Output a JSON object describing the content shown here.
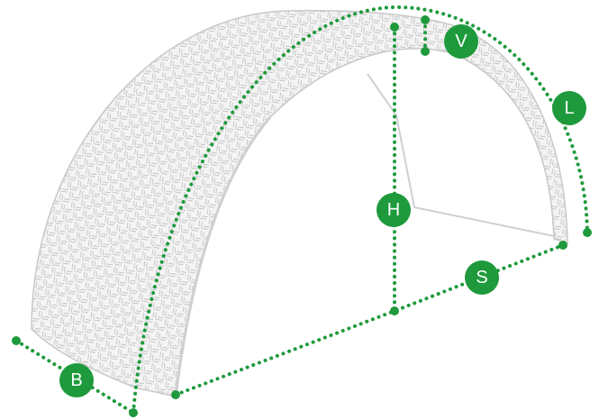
{
  "labels": {
    "v": "V",
    "l": "L",
    "h": "H",
    "s": "S",
    "b": "B"
  }
}
